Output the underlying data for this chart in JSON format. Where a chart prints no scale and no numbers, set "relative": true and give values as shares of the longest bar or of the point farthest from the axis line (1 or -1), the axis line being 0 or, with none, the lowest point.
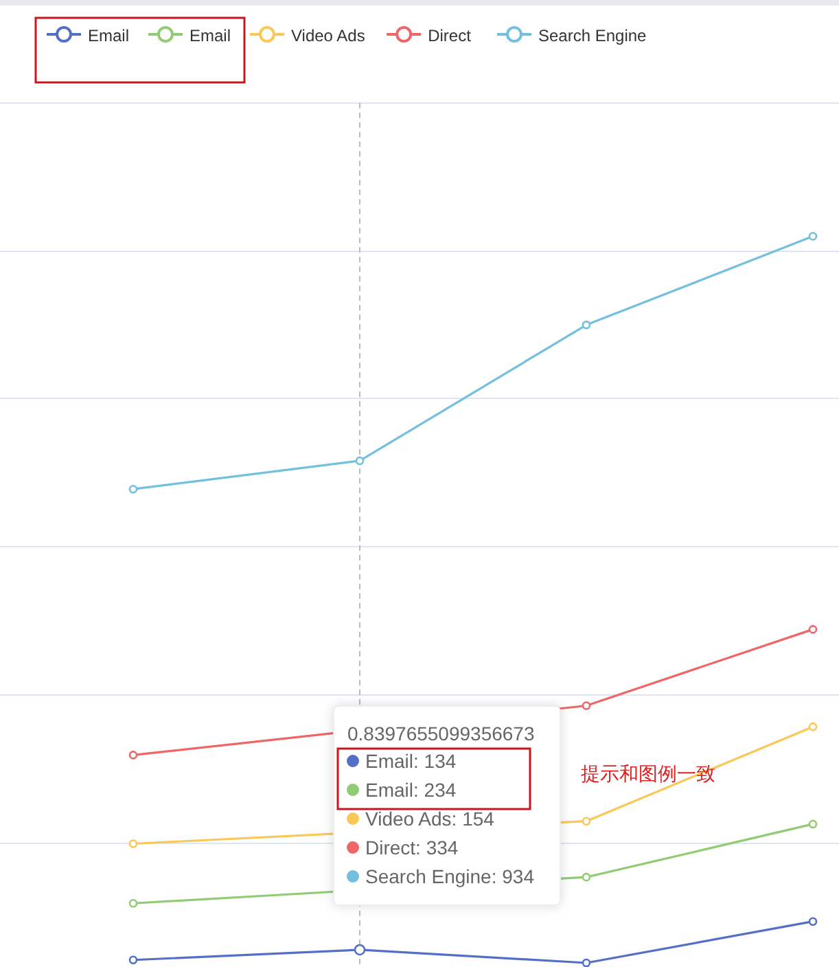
{
  "chart_data": {
    "type": "line",
    "relative": true,
    "categories": [
      null,
      null,
      null,
      null
    ],
    "series": [
      {
        "name": "Email",
        "color": "#5470c6",
        "values": [
          0.004,
          0.018,
          0,
          0.057
        ]
      },
      {
        "name": "Email",
        "color": "#91cc75",
        "values": [
          0.082,
          null,
          0.118,
          0.191
        ]
      },
      {
        "name": "Video Ads",
        "color": "#fac858",
        "values": [
          0.164,
          null,
          0.195,
          0.325
        ]
      },
      {
        "name": "Direct",
        "color": "#ee6666",
        "values": [
          0.286,
          null,
          0.354,
          0.459
        ]
      },
      {
        "name": "Search Engine",
        "color": "#73c0de",
        "values": [
          0.652,
          0.691,
          0.878,
          1
        ]
      }
    ],
    "marker": "circle",
    "grid": "y",
    "legend": "top",
    "tick_labels": false,
    "annotations": [
      "0.8397655099356673",
      "Email: 134",
      "Email: 234",
      "Video Ads: 154",
      "Direct: 334",
      "Search Engine: 934",
      "提示和图例一致"
    ]
  }
}
